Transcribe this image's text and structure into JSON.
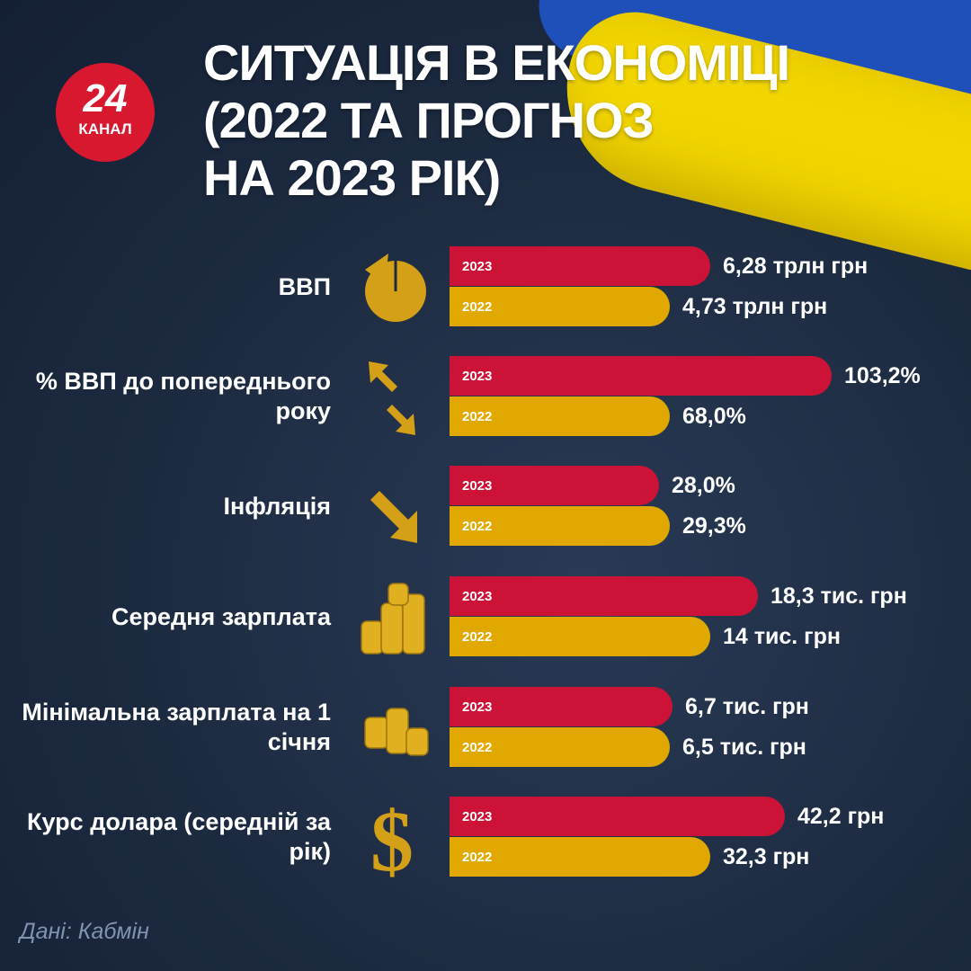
{
  "header": {
    "logo_number": "24",
    "logo_word": "КАНАЛ",
    "title_lines": [
      "СИТУАЦІЯ В ЕКОНОМІЦІ",
      "(2022 ТА ПРОГНОЗ",
      "НА 2023 РІК)"
    ]
  },
  "colors": {
    "background": "#1c2a40",
    "bar_2023": "#cc1236",
    "bar_2022": "#e1a900",
    "icon_gold": "#d4a017"
  },
  "chart_data": {
    "type": "bar",
    "orientation": "horizontal",
    "series_labels": [
      "2023",
      "2022"
    ],
    "categories": [
      {
        "label": "ВВП",
        "icon": "pie-chart-icon",
        "v2023": "6,28 трлн грн",
        "v2022": "4,73 трлн грн",
        "n2023": 6.28,
        "n2022": 4.73
      },
      {
        "label": "% ВВП до попереднього року",
        "icon": "up-down-arrows-icon",
        "v2023": "103,2%",
        "v2022": "68,0%",
        "n2023": 103.2,
        "n2022": 68.0
      },
      {
        "label": "Інфляція",
        "icon": "down-arrow-icon",
        "v2023": "28,0%",
        "v2022": "29,3%",
        "n2023": 28.0,
        "n2022": 29.3
      },
      {
        "label": "Середня зарплата",
        "icon": "coin-stacks-icon",
        "v2023": "18,3 тис. грн",
        "v2022": "14 тис. грн",
        "n2023": 18.3,
        "n2022": 14
      },
      {
        "label": "Мінімальна зарплата на 1 січня",
        "icon": "coins-icon",
        "v2023": "6,7 тис. грн",
        "v2022": "6,5 тис. грн",
        "n2023": 6.7,
        "n2022": 6.5
      },
      {
        "label": "Курс долара (середній за рік)",
        "icon": "dollar-icon",
        "v2023": "42,2 грн",
        "v2022": "32,3 грн",
        "n2023": 42.2,
        "n2022": 32.3
      }
    ]
  },
  "footer": {
    "source": "Дані: Кабмін"
  }
}
